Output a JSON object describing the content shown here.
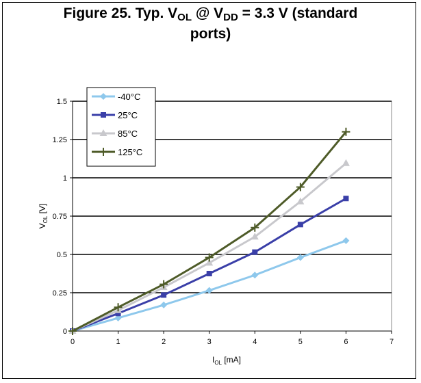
{
  "figure": {
    "title_prefix": "Figure 25. Typ. V",
    "title_sub1": "OL",
    "title_mid": " @ V",
    "title_sub2": "DD",
    "title_suffix": " = 3.3 V (standard",
    "title_line2": "ports)"
  },
  "chart_data": {
    "type": "line",
    "xlabel_main": "I",
    "xlabel_sub": "OL",
    "xlabel_unit": " [mA]",
    "ylabel_main": "V",
    "ylabel_sub": "OL",
    "ylabel_unit": " [V]",
    "xlim": [
      0,
      7
    ],
    "ylim": [
      0,
      1.5
    ],
    "x_ticks": [
      "0",
      "1",
      "2",
      "3",
      "4",
      "5",
      "6",
      "7"
    ],
    "y_ticks": [
      "0",
      "0.25",
      "0.5",
      "0.75",
      "1",
      "1.25",
      "1.5"
    ],
    "grid": "horizontal",
    "legend_position": "top-left",
    "x": [
      0,
      1,
      2,
      3,
      4,
      5,
      6
    ],
    "series": [
      {
        "name": "-40°C",
        "color": "#8ec8ec",
        "marker": "diamond",
        "values": [
          0.0,
          0.085,
          0.17,
          0.265,
          0.365,
          0.48,
          0.59
        ]
      },
      {
        "name": "25°C",
        "color": "#3a3fa8",
        "marker": "square",
        "values": [
          0.0,
          0.115,
          0.235,
          0.375,
          0.515,
          0.695,
          0.865
        ]
      },
      {
        "name": "85°C",
        "color": "#c8c8cc",
        "marker": "triangle",
        "values": [
          0.0,
          0.135,
          0.285,
          0.445,
          0.615,
          0.845,
          1.095
        ]
      },
      {
        "name": "125°C",
        "color": "#4e5b28",
        "marker": "plus",
        "values": [
          0.0,
          0.155,
          0.305,
          0.48,
          0.675,
          0.94,
          1.3
        ]
      }
    ]
  }
}
